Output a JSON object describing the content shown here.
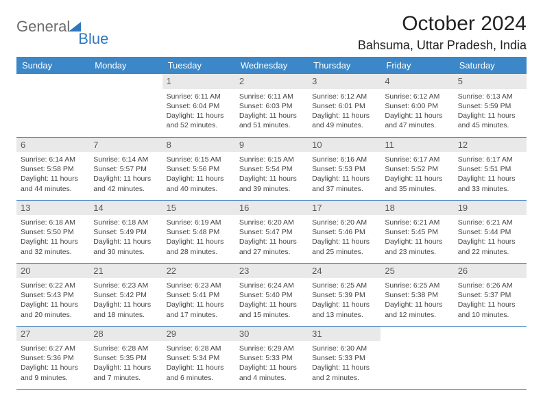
{
  "logo": {
    "part1": "General",
    "part2": "Blue"
  },
  "title": "October 2024",
  "location": "Bahsuma, Uttar Pradesh, India",
  "colors": {
    "header_bg": "#3b87c8",
    "border": "#2f78bd",
    "daynum_bg": "#e9e9e9",
    "text": "#444444",
    "logo_gray": "#6b6b6b",
    "logo_blue": "#2f78bd"
  },
  "weekdays": [
    "Sunday",
    "Monday",
    "Tuesday",
    "Wednesday",
    "Thursday",
    "Friday",
    "Saturday"
  ],
  "first_weekday_index": 2,
  "days": [
    {
      "n": 1,
      "sr": "6:11 AM",
      "ss": "6:04 PM",
      "dl": "11 hours and 52 minutes."
    },
    {
      "n": 2,
      "sr": "6:11 AM",
      "ss": "6:03 PM",
      "dl": "11 hours and 51 minutes."
    },
    {
      "n": 3,
      "sr": "6:12 AM",
      "ss": "6:01 PM",
      "dl": "11 hours and 49 minutes."
    },
    {
      "n": 4,
      "sr": "6:12 AM",
      "ss": "6:00 PM",
      "dl": "11 hours and 47 minutes."
    },
    {
      "n": 5,
      "sr": "6:13 AM",
      "ss": "5:59 PM",
      "dl": "11 hours and 45 minutes."
    },
    {
      "n": 6,
      "sr": "6:14 AM",
      "ss": "5:58 PM",
      "dl": "11 hours and 44 minutes."
    },
    {
      "n": 7,
      "sr": "6:14 AM",
      "ss": "5:57 PM",
      "dl": "11 hours and 42 minutes."
    },
    {
      "n": 8,
      "sr": "6:15 AM",
      "ss": "5:56 PM",
      "dl": "11 hours and 40 minutes."
    },
    {
      "n": 9,
      "sr": "6:15 AM",
      "ss": "5:54 PM",
      "dl": "11 hours and 39 minutes."
    },
    {
      "n": 10,
      "sr": "6:16 AM",
      "ss": "5:53 PM",
      "dl": "11 hours and 37 minutes."
    },
    {
      "n": 11,
      "sr": "6:17 AM",
      "ss": "5:52 PM",
      "dl": "11 hours and 35 minutes."
    },
    {
      "n": 12,
      "sr": "6:17 AM",
      "ss": "5:51 PM",
      "dl": "11 hours and 33 minutes."
    },
    {
      "n": 13,
      "sr": "6:18 AM",
      "ss": "5:50 PM",
      "dl": "11 hours and 32 minutes."
    },
    {
      "n": 14,
      "sr": "6:18 AM",
      "ss": "5:49 PM",
      "dl": "11 hours and 30 minutes."
    },
    {
      "n": 15,
      "sr": "6:19 AM",
      "ss": "5:48 PM",
      "dl": "11 hours and 28 minutes."
    },
    {
      "n": 16,
      "sr": "6:20 AM",
      "ss": "5:47 PM",
      "dl": "11 hours and 27 minutes."
    },
    {
      "n": 17,
      "sr": "6:20 AM",
      "ss": "5:46 PM",
      "dl": "11 hours and 25 minutes."
    },
    {
      "n": 18,
      "sr": "6:21 AM",
      "ss": "5:45 PM",
      "dl": "11 hours and 23 minutes."
    },
    {
      "n": 19,
      "sr": "6:21 AM",
      "ss": "5:44 PM",
      "dl": "11 hours and 22 minutes."
    },
    {
      "n": 20,
      "sr": "6:22 AM",
      "ss": "5:43 PM",
      "dl": "11 hours and 20 minutes."
    },
    {
      "n": 21,
      "sr": "6:23 AM",
      "ss": "5:42 PM",
      "dl": "11 hours and 18 minutes."
    },
    {
      "n": 22,
      "sr": "6:23 AM",
      "ss": "5:41 PM",
      "dl": "11 hours and 17 minutes."
    },
    {
      "n": 23,
      "sr": "6:24 AM",
      "ss": "5:40 PM",
      "dl": "11 hours and 15 minutes."
    },
    {
      "n": 24,
      "sr": "6:25 AM",
      "ss": "5:39 PM",
      "dl": "11 hours and 13 minutes."
    },
    {
      "n": 25,
      "sr": "6:25 AM",
      "ss": "5:38 PM",
      "dl": "11 hours and 12 minutes."
    },
    {
      "n": 26,
      "sr": "6:26 AM",
      "ss": "5:37 PM",
      "dl": "11 hours and 10 minutes."
    },
    {
      "n": 27,
      "sr": "6:27 AM",
      "ss": "5:36 PM",
      "dl": "11 hours and 9 minutes."
    },
    {
      "n": 28,
      "sr": "6:28 AM",
      "ss": "5:35 PM",
      "dl": "11 hours and 7 minutes."
    },
    {
      "n": 29,
      "sr": "6:28 AM",
      "ss": "5:34 PM",
      "dl": "11 hours and 6 minutes."
    },
    {
      "n": 30,
      "sr": "6:29 AM",
      "ss": "5:33 PM",
      "dl": "11 hours and 4 minutes."
    },
    {
      "n": 31,
      "sr": "6:30 AM",
      "ss": "5:33 PM",
      "dl": "11 hours and 2 minutes."
    }
  ],
  "labels": {
    "sunrise": "Sunrise: ",
    "sunset": "Sunset: ",
    "daylight": "Daylight: "
  }
}
